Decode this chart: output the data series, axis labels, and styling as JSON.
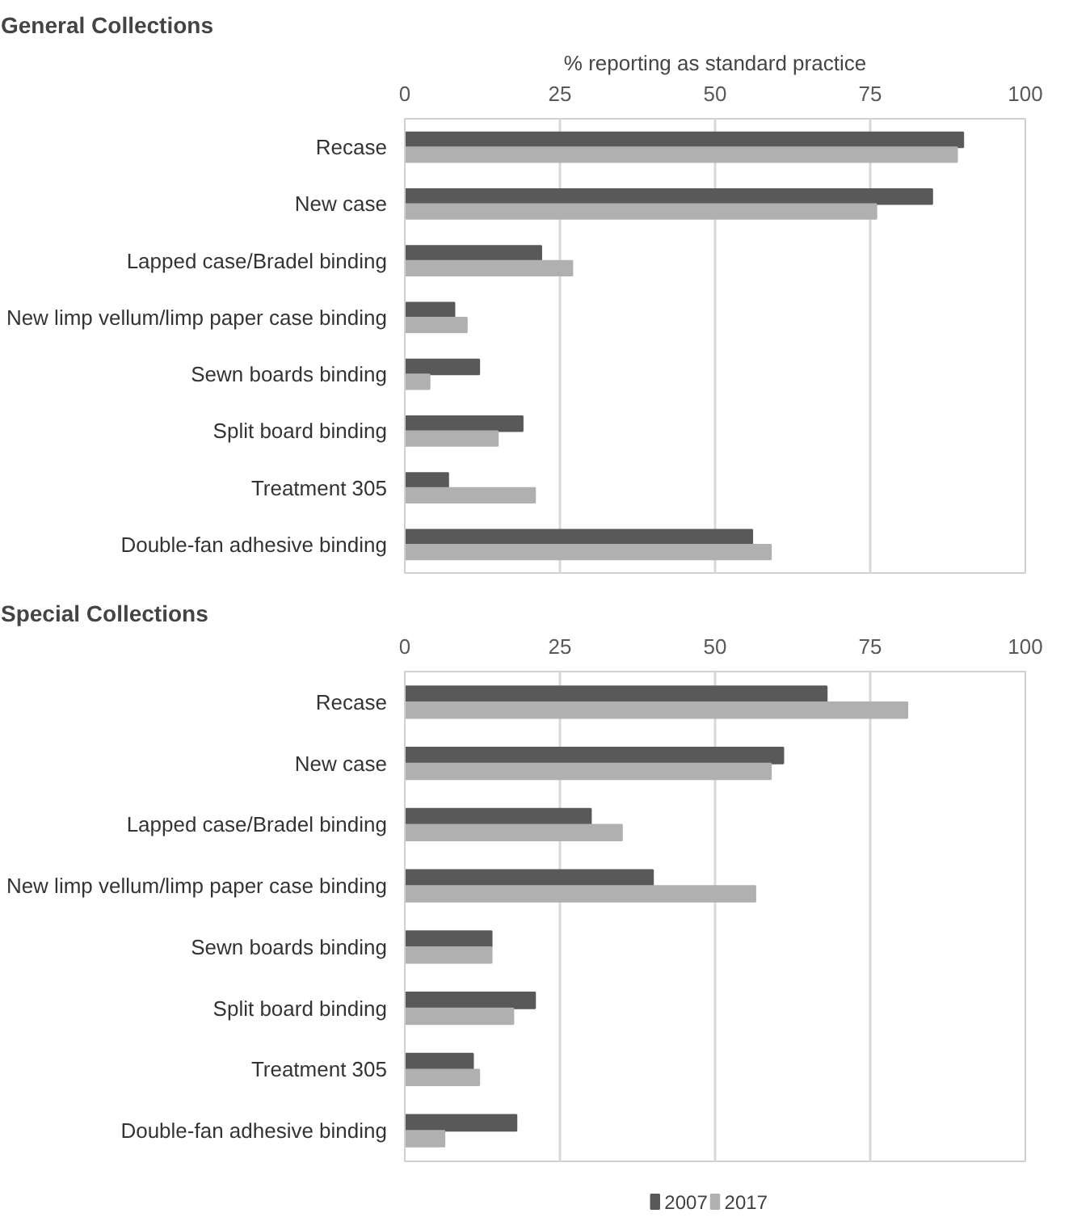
{
  "chart_data": [
    {
      "type": "bar",
      "orientation": "horizontal",
      "title": "General Collections",
      "xlabel": "% reporting as standard practice",
      "categories": [
        "Recase",
        "New case",
        "Lapped case/Bradel binding",
        "New limp vellum/limp paper case binding",
        "Sewn boards binding",
        "Split board binding",
        "Treatment 305",
        "Double-fan adhesive binding"
      ],
      "series": [
        {
          "name": "2007",
          "color": "#595959",
          "values": [
            90,
            85,
            22,
            8,
            12,
            19,
            7,
            56
          ]
        },
        {
          "name": "2017",
          "color": "#b0b0b0",
          "values": [
            89,
            76,
            27,
            10,
            4,
            15,
            21,
            59
          ]
        }
      ],
      "xlim": [
        0,
        100
      ],
      "xticks": [
        0,
        25,
        50,
        75,
        100
      ],
      "grid": "x",
      "legend": "bottom"
    },
    {
      "type": "bar",
      "orientation": "horizontal",
      "title": "Special Collections",
      "categories": [
        "Recase",
        "New case",
        "Lapped case/Bradel binding",
        "New limp vellum/limp paper case binding",
        "Sewn boards binding",
        "Split board binding",
        "Treatment 305",
        "Double-fan adhesive binding"
      ],
      "series": [
        {
          "name": "2007",
          "color": "#595959",
          "values": [
            68,
            61,
            30,
            40,
            14,
            21,
            11,
            18
          ]
        },
        {
          "name": "2017",
          "color": "#b0b0b0",
          "values": [
            81,
            59,
            35,
            56.5,
            14,
            17.5,
            12,
            6.4
          ]
        }
      ],
      "xlim": [
        0,
        100
      ],
      "xticks": [
        0,
        25,
        50,
        75,
        100
      ],
      "grid": "x",
      "legend": "bottom"
    }
  ]
}
